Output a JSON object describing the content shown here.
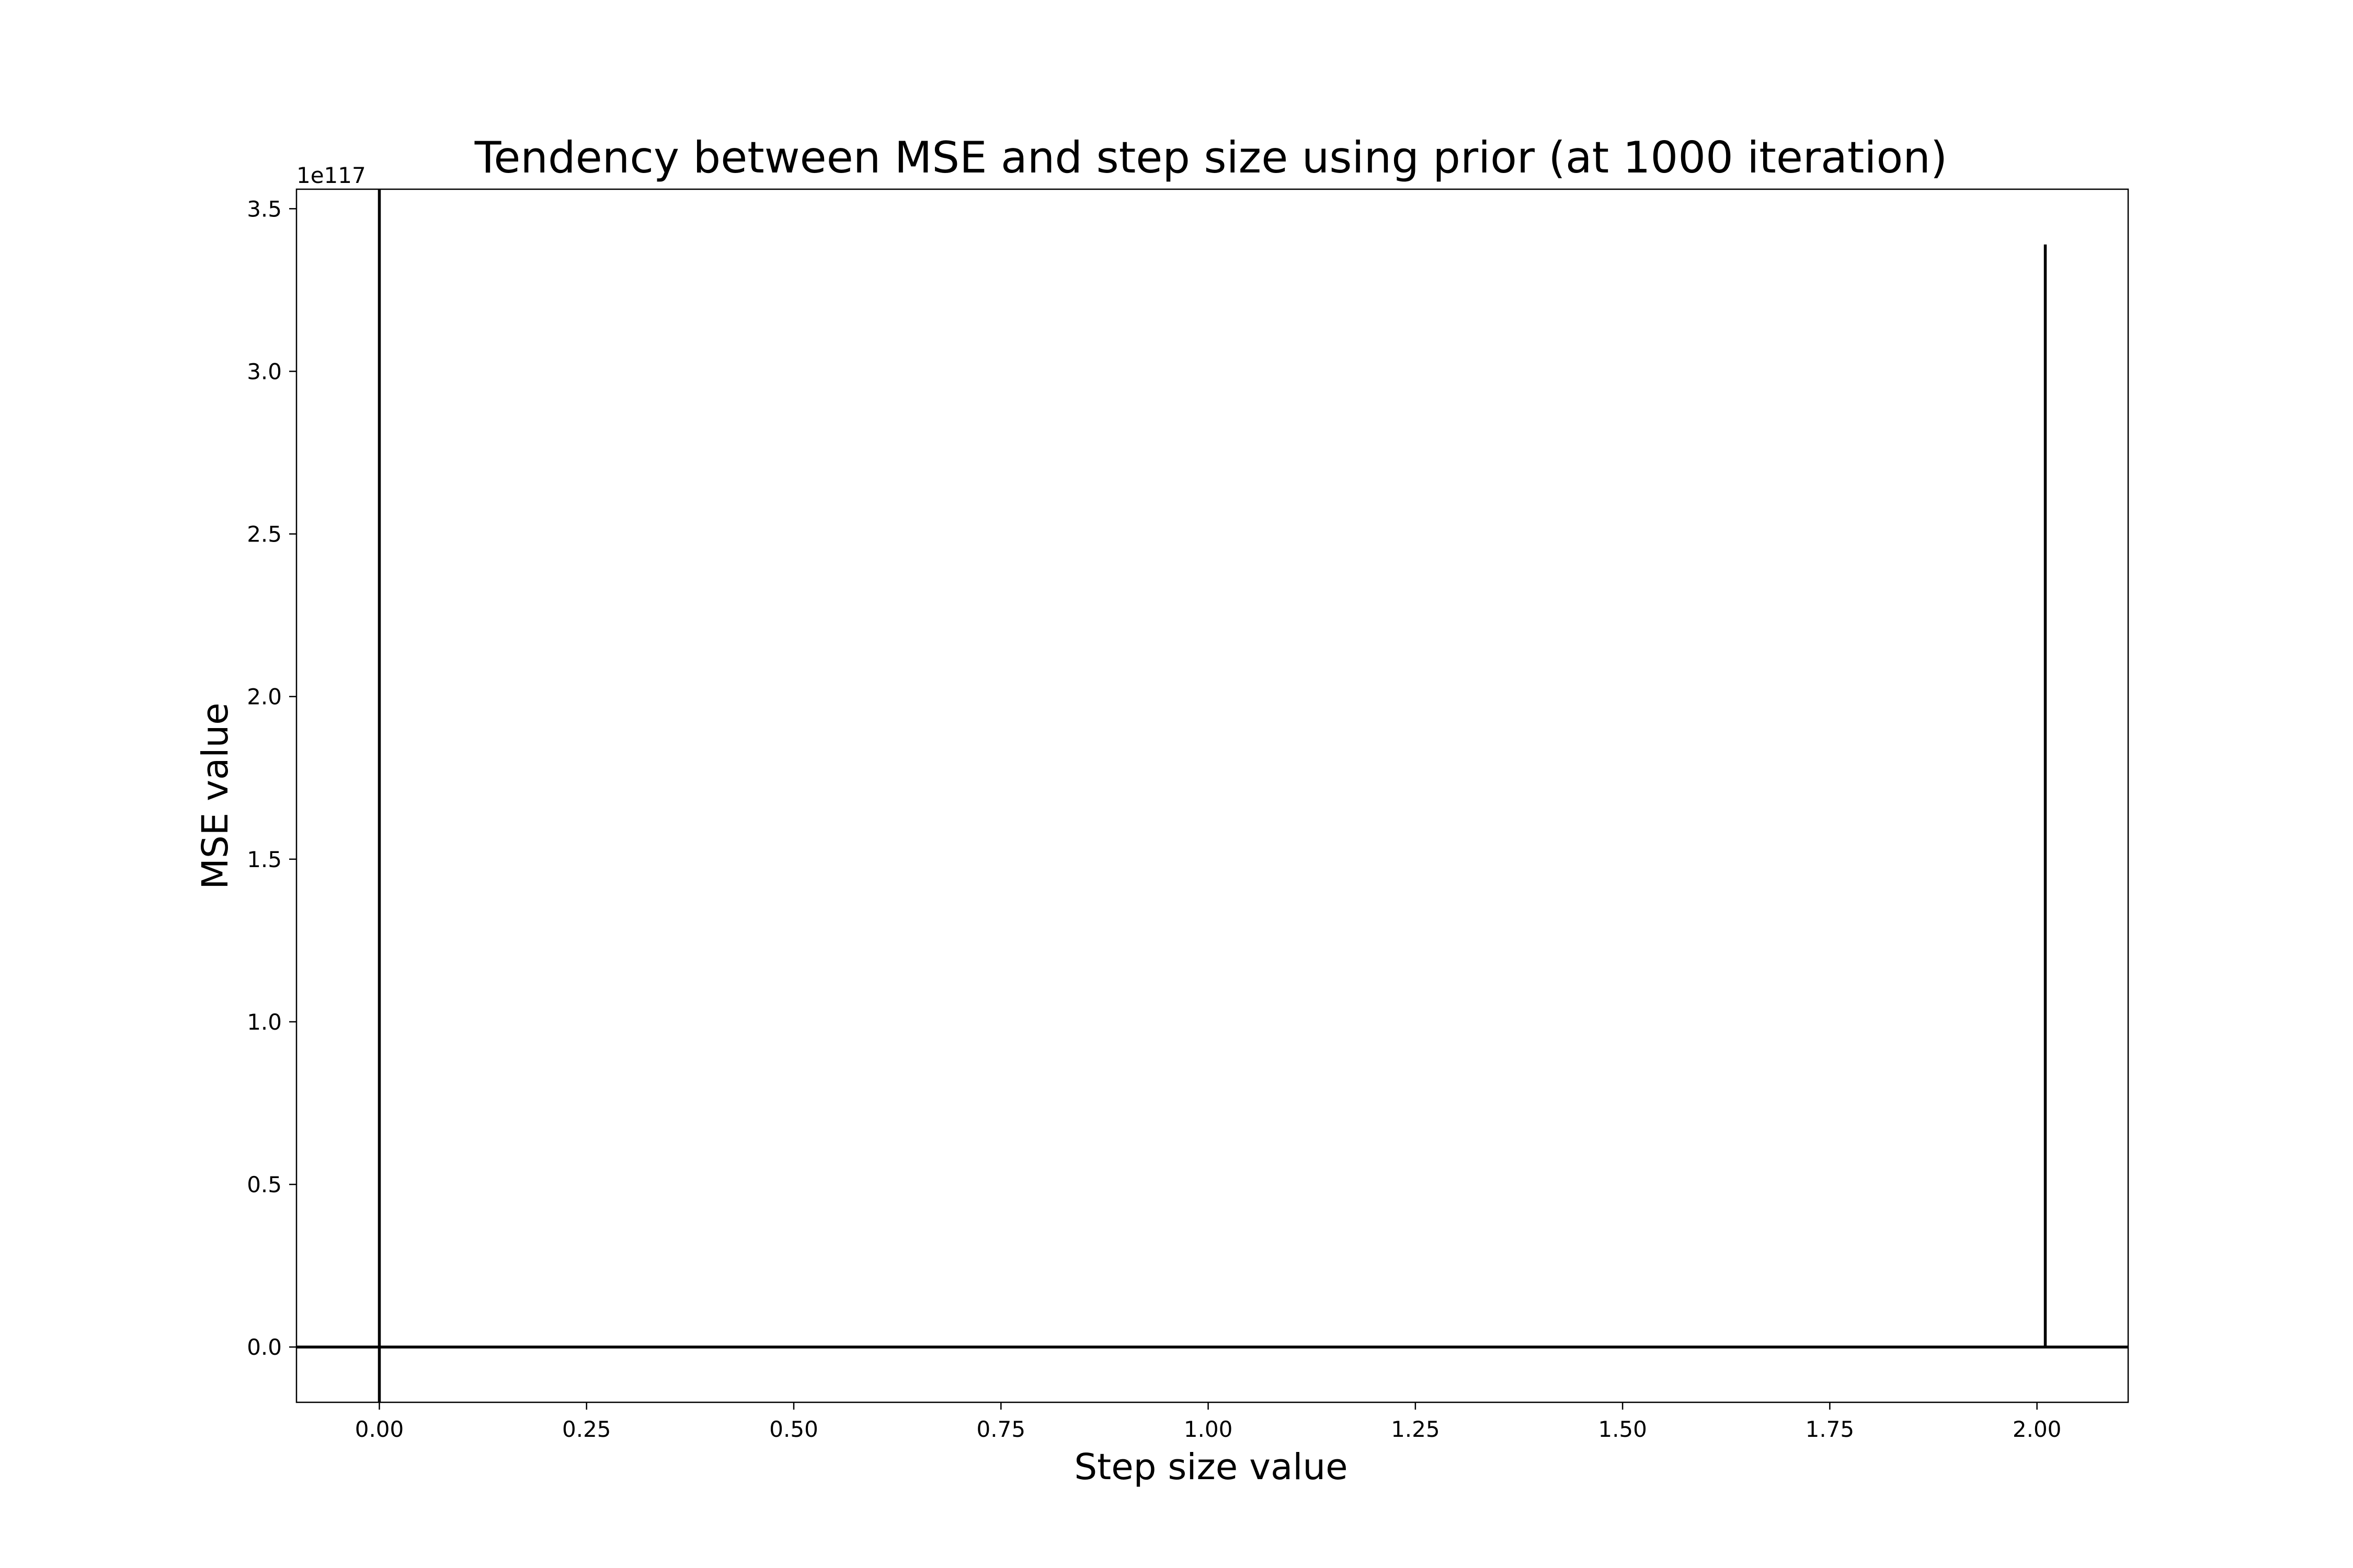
{
  "chart_data": {
    "type": "line",
    "title": "Tendency between MSE and step size using prior (at 1000 iteration)",
    "xlabel": "Step size value",
    "ylabel": "MSE value",
    "y_offset_label": "1e117",
    "y_scale_exponent": 117,
    "xlim": [
      -0.1,
      2.11
    ],
    "ylim": [
      -0.17,
      3.56
    ],
    "x_ticks": [
      0.0,
      0.25,
      0.5,
      0.75,
      1.0,
      1.25,
      1.5,
      1.75,
      2.0
    ],
    "x_tick_labels": [
      "0.00",
      "0.25",
      "0.50",
      "0.75",
      "1.00",
      "1.25",
      "1.50",
      "1.75",
      "2.00"
    ],
    "y_ticks": [
      0.0,
      0.5,
      1.0,
      1.5,
      2.0,
      2.5,
      3.0,
      3.5
    ],
    "y_tick_labels": [
      "0.0",
      "0.5",
      "1.0",
      "1.5",
      "2.0",
      "2.5",
      "3.0",
      "3.5"
    ],
    "grid": false,
    "color": "#000000",
    "series": [
      {
        "x": [
          0.0,
          0.0,
          0.0,
          0.0,
          2.0,
          2.01,
          2.01,
          2.11
        ],
        "y": [
          -0.17,
          3.56,
          0.0,
          0.0,
          0.0,
          0.0,
          3.39,
          0.0
        ],
        "segments": [
          {
            "x": [
              0.0,
              0.0
            ],
            "y": [
              -0.17,
              3.56
            ]
          },
          {
            "x": [
              -0.1,
              2.11
            ],
            "y": [
              0.0,
              0.0
            ]
          },
          {
            "x": [
              2.01,
              2.01
            ],
            "y": [
              0.0,
              3.39
            ]
          }
        ]
      }
    ]
  }
}
